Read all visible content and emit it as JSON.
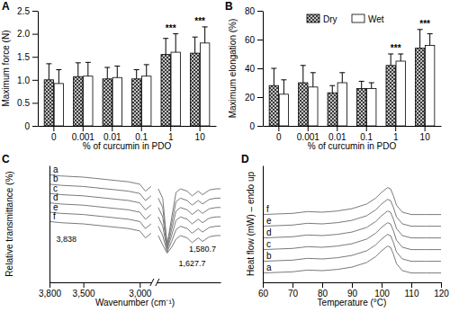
{
  "chart_data": [
    {
      "type": "bar",
      "title": "A",
      "xlabel": "% of curcumin in PDO",
      "ylabel": "Maximum force (N)",
      "categories": [
        "0",
        "0.001",
        "0.01",
        "0.1",
        "1",
        "10"
      ],
      "series": [
        {
          "color": "#3a3a3a",
          "values": [
            1.0,
            1.07,
            1.02,
            1.02,
            1.55,
            1.58
          ],
          "errors": [
            0.35,
            0.3,
            0.25,
            0.2,
            0.35,
            0.35
          ]
        },
        {
          "color": "#ffffff",
          "values": [
            0.92,
            1.08,
            1.05,
            1.08,
            1.6,
            1.8
          ],
          "errors": [
            0.3,
            0.3,
            0.25,
            0.25,
            0.4,
            0.35
          ]
        }
      ],
      "ylim": [
        0,
        2.5
      ],
      "yticks": [
        0,
        0.5,
        {
          "value": 1,
          "label": "1.0"
        },
        1.5,
        {
          "value": 2,
          "label": "2.0"
        },
        2.5
      ],
      "annotations": [
        {
          "text": "***",
          "category": "1"
        },
        {
          "text": "***",
          "category": "10"
        }
      ]
    },
    {
      "type": "bar",
      "title": "B",
      "xlabel": "% of curcumin in PDO",
      "ylabel": "Maximum elongation (%)",
      "categories": [
        "0",
        "0.001",
        "0.01",
        "0.1",
        "1",
        "10"
      ],
      "series": [
        {
          "name": "Dry",
          "color": "#3a3a3a",
          "values": [
            28,
            30,
            23,
            26,
            42,
            54
          ],
          "errors": [
            12,
            12,
            5,
            5,
            8,
            13
          ]
        },
        {
          "name": "Wet",
          "color": "#ffffff",
          "values": [
            22,
            27,
            30,
            26,
            45,
            56
          ],
          "errors": [
            10,
            10,
            7,
            4,
            5,
            8
          ]
        }
      ],
      "ylim": [
        0,
        80
      ],
      "yticks": [
        0,
        20,
        40,
        60,
        80
      ],
      "legend": "top",
      "annotations": [
        {
          "text": "***",
          "category": "1"
        },
        {
          "text": "***",
          "category": "10"
        }
      ]
    },
    {
      "type": "line",
      "title": "C",
      "xlabel": "Wavenumber (cm⁻¹)",
      "ylabel": "Relative transmittance (%)",
      "x": [
        3800,
        3700,
        3600,
        3500,
        3400,
        3300,
        3200,
        3100,
        3000,
        2950,
        2900,
        2300,
        1780,
        1760,
        1740,
        1720,
        1700,
        1680,
        1650,
        1627.7,
        1600,
        1580.7,
        1550,
        1520,
        1500
      ],
      "series": [
        {
          "name": "a",
          "color": "#7a7a7a",
          "values": [
            92,
            91,
            90.5,
            90,
            89,
            88,
            87,
            86,
            84,
            78,
            82,
            null,
            80,
            72,
            32,
            55,
            77,
            80,
            78,
            74,
            78,
            75,
            79,
            80,
            80
          ]
        },
        {
          "name": "b",
          "color": "#7a7a7a",
          "values": [
            84,
            83,
            82.5,
            82,
            81,
            80,
            79,
            78,
            76,
            70,
            74,
            null,
            72,
            64,
            31,
            50,
            69,
            72,
            70,
            66,
            70,
            67,
            71,
            72,
            72
          ]
        },
        {
          "name": "c",
          "color": "#7a7a7a",
          "values": [
            76,
            75,
            74.5,
            74,
            73,
            72,
            71,
            70,
            68,
            62,
            66,
            null,
            64,
            56,
            29,
            45,
            61,
            64,
            62,
            58,
            62,
            59,
            63,
            64,
            64
          ]
        },
        {
          "name": "d",
          "color": "#7a7a7a",
          "values": [
            68,
            67,
            66.5,
            66,
            65,
            64,
            63,
            62,
            60,
            54,
            58,
            null,
            56,
            48,
            28,
            40,
            53,
            56,
            54,
            50,
            54,
            51,
            55,
            56,
            56
          ]
        },
        {
          "name": "e",
          "color": "#7a7a7a",
          "values": [
            60,
            59,
            58.5,
            58,
            57,
            56,
            55,
            54,
            52,
            46,
            50,
            null,
            48,
            40,
            26,
            35,
            45,
            48,
            46,
            42,
            46,
            43,
            47,
            48,
            48
          ]
        },
        {
          "name": "f",
          "color": "#7a7a7a",
          "values": [
            52,
            51,
            50.5,
            50,
            49,
            48,
            47,
            46,
            44,
            38,
            42,
            null,
            40,
            32,
            25,
            30,
            37,
            40,
            38,
            34,
            38,
            35,
            39,
            40,
            40
          ]
        }
      ],
      "xlim": [
        3800,
        1500
      ],
      "xbreak": [
        2900,
        1780
      ],
      "xticks": [
        {
          "value": 3800,
          "label": "3,800"
        },
        {
          "value": 3500,
          "label": "3,500"
        },
        {
          "value": 3000,
          "label": "3,000"
        }
      ],
      "ylim": [
        0,
        100
      ],
      "tick_labels": "x",
      "annotations": [
        {
          "text": "3,838",
          "x": 3650,
          "y": 35
        },
        {
          "text": "1,580.7",
          "x": 1580.7,
          "y": 26
        },
        {
          "text": "1,627.7",
          "x": 1627.7,
          "y": 14
        }
      ]
    },
    {
      "type": "line",
      "title": "D",
      "xlabel": "Temperature (°C)",
      "ylabel": "Heat flow (mW) – endo up",
      "x": [
        60,
        65,
        70,
        75,
        80,
        85,
        90,
        95,
        98,
        100,
        102,
        103,
        104,
        105,
        107,
        110,
        115,
        120
      ],
      "series": [
        {
          "name": "a",
          "color": "#7a7a7a",
          "values": [
            8,
            8.5,
            9,
            10.5,
            10,
            11,
            13,
            17,
            22,
            27,
            31,
            30,
            24,
            16,
            10,
            8,
            8,
            8
          ]
        },
        {
          "name": "b",
          "color": "#7a7a7a",
          "values": [
            18,
            18.5,
            19,
            20.5,
            20,
            21,
            23,
            27,
            32,
            37,
            41,
            40,
            34,
            26,
            20,
            18,
            18,
            18
          ]
        },
        {
          "name": "c",
          "color": "#7a7a7a",
          "values": [
            28,
            28.5,
            29,
            30.5,
            30,
            31,
            33,
            37,
            42,
            47,
            51,
            50,
            44,
            36,
            30,
            28,
            28,
            28
          ]
        },
        {
          "name": "d",
          "color": "#7a7a7a",
          "values": [
            38,
            38.5,
            39,
            40.5,
            40,
            41,
            43,
            47,
            52,
            57,
            61,
            60,
            54,
            46,
            40,
            38,
            38,
            38
          ]
        },
        {
          "name": "e",
          "color": "#7a7a7a",
          "values": [
            48,
            48.5,
            49,
            50.5,
            50,
            51,
            53,
            57,
            62,
            67,
            71,
            70,
            64,
            56,
            50,
            48,
            48,
            48
          ]
        },
        {
          "name": "f",
          "color": "#7a7a7a",
          "values": [
            58,
            58.5,
            59,
            60.5,
            60,
            61,
            63,
            67,
            72,
            77,
            81,
            80,
            74,
            66,
            60,
            58,
            58,
            58
          ]
        }
      ],
      "xlim": [
        60,
        120
      ],
      "xticks": [
        60,
        70,
        80,
        90,
        100,
        110,
        120
      ],
      "ylim": [
        0,
        100
      ],
      "tick_labels": "x"
    }
  ]
}
